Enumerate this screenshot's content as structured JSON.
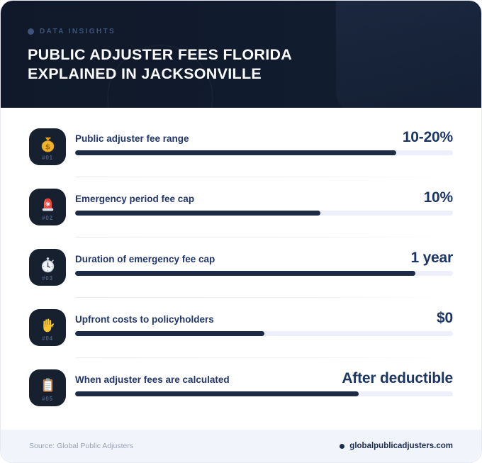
{
  "header": {
    "eyebrow": "DATA INSIGHTS",
    "title_line1": "PUBLIC ADJUSTER FEES FLORIDA",
    "title_line2": "EXPLAINED IN JACKSONVILLE"
  },
  "rows": [
    {
      "num": "#01",
      "icon": "money-bag-icon",
      "label": "Public adjuster fee range",
      "value": "10-20%",
      "percent": 85
    },
    {
      "num": "#02",
      "icon": "siren-icon",
      "label": "Emergency period fee cap",
      "value": "10%",
      "percent": 65
    },
    {
      "num": "#03",
      "icon": "stopwatch-icon",
      "label": "Duration of emergency fee cap",
      "value": "1 year",
      "percent": 90
    },
    {
      "num": "#04",
      "icon": "hand-icon",
      "label": "Upfront costs to policyholders",
      "value": "$0",
      "percent": 50
    },
    {
      "num": "#05",
      "icon": "clipboard-icon",
      "label": "When adjuster fees are calculated",
      "value": "After deductible",
      "percent": 75
    }
  ],
  "footer": {
    "source": "Source: Global Public Adjusters",
    "site": "globalpublicadjusters.com"
  },
  "colors": {
    "header_bg": "#121d31",
    "eyebrow": "#3e5379",
    "label": "#22366b",
    "value": "#1c3766",
    "bar_fill": "#1d2b47",
    "bar_track": "#edeffa",
    "tile_bg": "#16202f",
    "footer_bg": "#f2f4fb"
  },
  "chart_data": {
    "type": "bar",
    "orientation": "horizontal",
    "title": "Public Adjuster Fees Florida Explained in Jacksonville",
    "categories": [
      "Public adjuster fee range",
      "Emergency period fee cap",
      "Duration of emergency fee cap",
      "Upfront costs to policyholders",
      "When adjuster fees are calculated"
    ],
    "values": [
      "10-20%",
      "10%",
      "1 year",
      "$0",
      "After deductible"
    ],
    "bar_fill_percent": [
      85,
      65,
      90,
      50,
      75
    ],
    "legend": false,
    "grid": false
  }
}
